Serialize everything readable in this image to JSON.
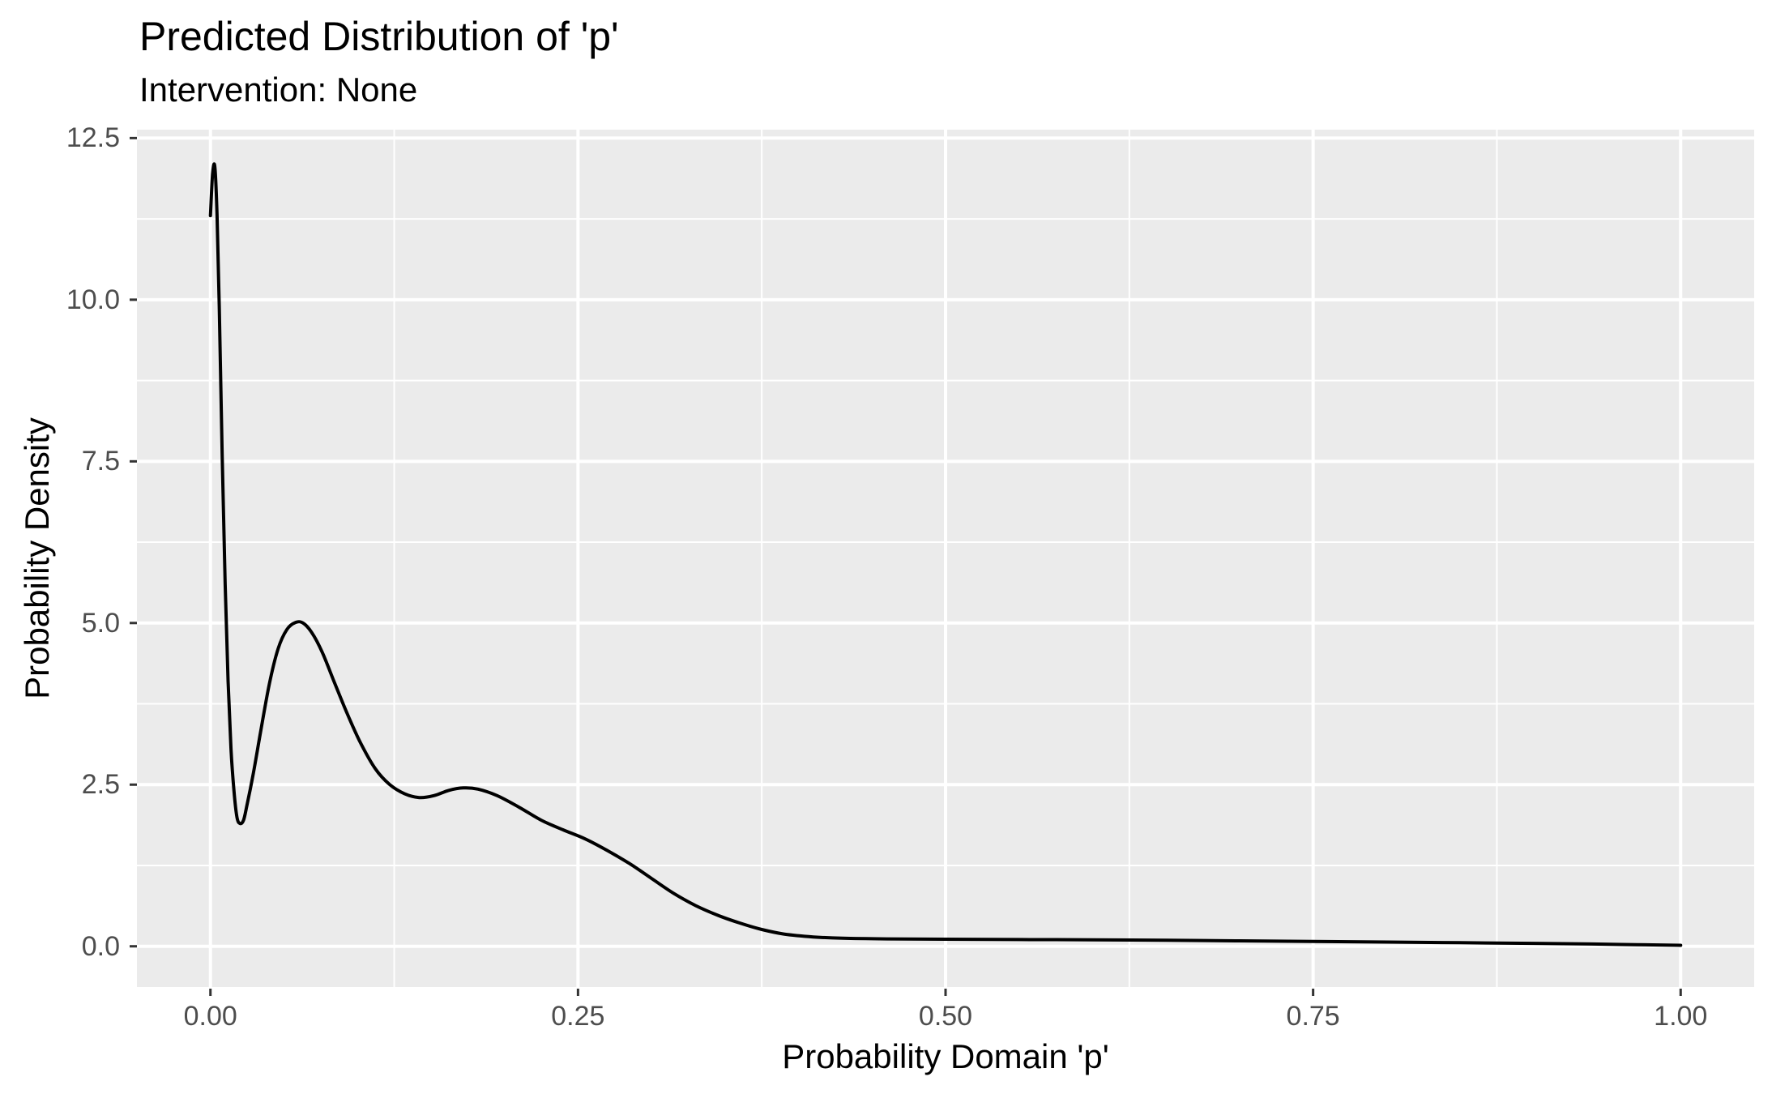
{
  "chart_data": {
    "type": "line",
    "title": "Predicted Distribution of 'p'",
    "subtitle": "Intervention: None",
    "xlabel": "Probability Domain 'p'",
    "ylabel": "Probability Density",
    "xlim": [
      -0.05,
      1.05
    ],
    "ylim": [
      -0.63,
      12.63
    ],
    "grid": true,
    "legend": false,
    "x_ticks": [
      0.0,
      0.25,
      0.5,
      0.75,
      1.0
    ],
    "x_tick_labels": [
      "0.00",
      "0.25",
      "0.50",
      "0.75",
      "1.00"
    ],
    "x_minor_ticks": [
      0.125,
      0.375,
      0.625,
      0.875
    ],
    "y_ticks": [
      0.0,
      2.5,
      5.0,
      7.5,
      10.0,
      12.5
    ],
    "y_tick_labels": [
      "0.0",
      "2.5",
      "5.0",
      "7.5",
      "10.0",
      "12.5"
    ],
    "y_minor_ticks": [
      1.25,
      3.75,
      6.25,
      8.75,
      11.25
    ],
    "series": [
      {
        "name": "density",
        "x": [
          0.0,
          0.0015,
          0.003,
          0.0045,
          0.006,
          0.008,
          0.01,
          0.012,
          0.014,
          0.016,
          0.018,
          0.02,
          0.0225,
          0.025,
          0.029,
          0.034,
          0.04,
          0.046,
          0.052,
          0.058,
          0.063,
          0.069,
          0.076,
          0.084,
          0.093,
          0.102,
          0.112,
          0.122,
          0.132,
          0.142,
          0.152,
          0.162,
          0.172,
          0.182,
          0.195,
          0.21,
          0.225,
          0.24,
          0.255,
          0.27,
          0.285,
          0.3,
          0.315,
          0.33,
          0.345,
          0.36,
          0.375,
          0.39,
          0.41,
          0.43,
          0.46,
          0.5,
          0.55,
          0.6,
          0.65,
          0.7,
          0.75,
          0.8,
          0.85,
          0.9,
          0.94,
          0.97,
          1.0
        ],
        "y": [
          11.3,
          11.95,
          12.05,
          11.3,
          9.9,
          7.6,
          5.6,
          4.1,
          3.05,
          2.4,
          2.0,
          1.9,
          1.95,
          2.2,
          2.65,
          3.3,
          4.05,
          4.6,
          4.9,
          5.01,
          5.0,
          4.85,
          4.55,
          4.1,
          3.6,
          3.15,
          2.75,
          2.5,
          2.36,
          2.3,
          2.33,
          2.41,
          2.45,
          2.43,
          2.33,
          2.15,
          1.95,
          1.8,
          1.66,
          1.48,
          1.28,
          1.05,
          0.82,
          0.63,
          0.48,
          0.36,
          0.26,
          0.19,
          0.145,
          0.125,
          0.115,
          0.11,
          0.105,
          0.1,
          0.095,
          0.085,
          0.075,
          0.065,
          0.055,
          0.045,
          0.035,
          0.025,
          0.015
        ]
      }
    ],
    "annotations": []
  },
  "colors": {
    "background": "#FFFFFF",
    "panel": "#EBEBEB",
    "grid": "#FFFFFF",
    "curve": "#000000",
    "axis_text": "#4D4D4D",
    "tick_mark": "#333333",
    "title_text": "#000000"
  }
}
